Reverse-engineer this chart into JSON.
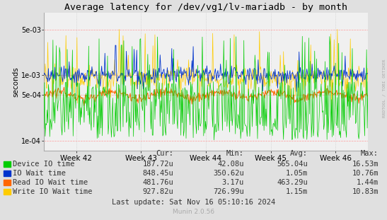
{
  "title": "Average latency for /dev/vg1/lv-mariadb - by month",
  "ylabel": "seconds",
  "bg_color": "#e0e0e0",
  "plot_bg_color": "#f0f0f0",
  "colors": {
    "device_io": "#00cc00",
    "io_wait": "#0033cc",
    "read_io": "#ff6600",
    "write_io": "#ffcc00"
  },
  "x_tick_labels": [
    "Week 42",
    "Week 43",
    "Week 44",
    "Week 45",
    "Week 46"
  ],
  "y_ticks": [
    0.0001,
    0.0005,
    0.001,
    0.005
  ],
  "ylim_low": 7e-05,
  "ylim_high": 0.009,
  "legend": [
    {
      "label": "Device IO time",
      "cur": "187.72u",
      "min": "42.08u",
      "avg": "565.04u",
      "max": "16.53m"
    },
    {
      "label": "IO Wait time",
      "cur": "848.45u",
      "min": "350.62u",
      "avg": "1.05m",
      "max": "10.76m"
    },
    {
      "label": "Read IO Wait time",
      "cur": "481.76u",
      "min": "3.17u",
      "avg": "463.29u",
      "max": "1.44m"
    },
    {
      "label": "Write IO Wait time",
      "cur": "927.82u",
      "min": "726.99u",
      "avg": "1.15m",
      "max": "10.83m"
    }
  ],
  "footer": "Last update: Sat Nov 16 05:10:16 2024",
  "watermark": "Munin 2.0.56",
  "rrdtool_label": "RRDTOOL / TOBI OETIKER"
}
